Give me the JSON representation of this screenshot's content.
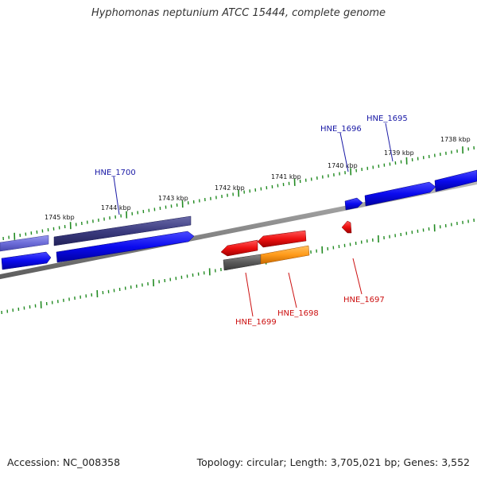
{
  "title": "Hyphomonas neptunium ATCC 15444, complete genome",
  "footer": {
    "accession": "Accession: NC_008358",
    "topology": "Topology: circular; Length: 3,705,021 bp; Genes: 3,552"
  },
  "ticks": [
    "1745 kbp",
    "1744 kbp",
    "1743 kbp",
    "1742 kbp",
    "1741 kbp",
    "1740 kbp",
    "1739 kbp",
    "1738 kbp"
  ],
  "genes": {
    "forward": [
      "HNE_1700",
      "HNE_1696",
      "HNE_1695"
    ],
    "reverse": [
      "HNE_1699",
      "HNE_1698",
      "HNE_1697"
    ]
  },
  "colors": {
    "forward_label": "#1a1aa6",
    "reverse_label": "#cc1111",
    "forward_gene": "#0a0aee",
    "reverse_gene": "#ee1111",
    "highlight_gene": "#ff9a1a",
    "tick": "#228b22"
  }
}
